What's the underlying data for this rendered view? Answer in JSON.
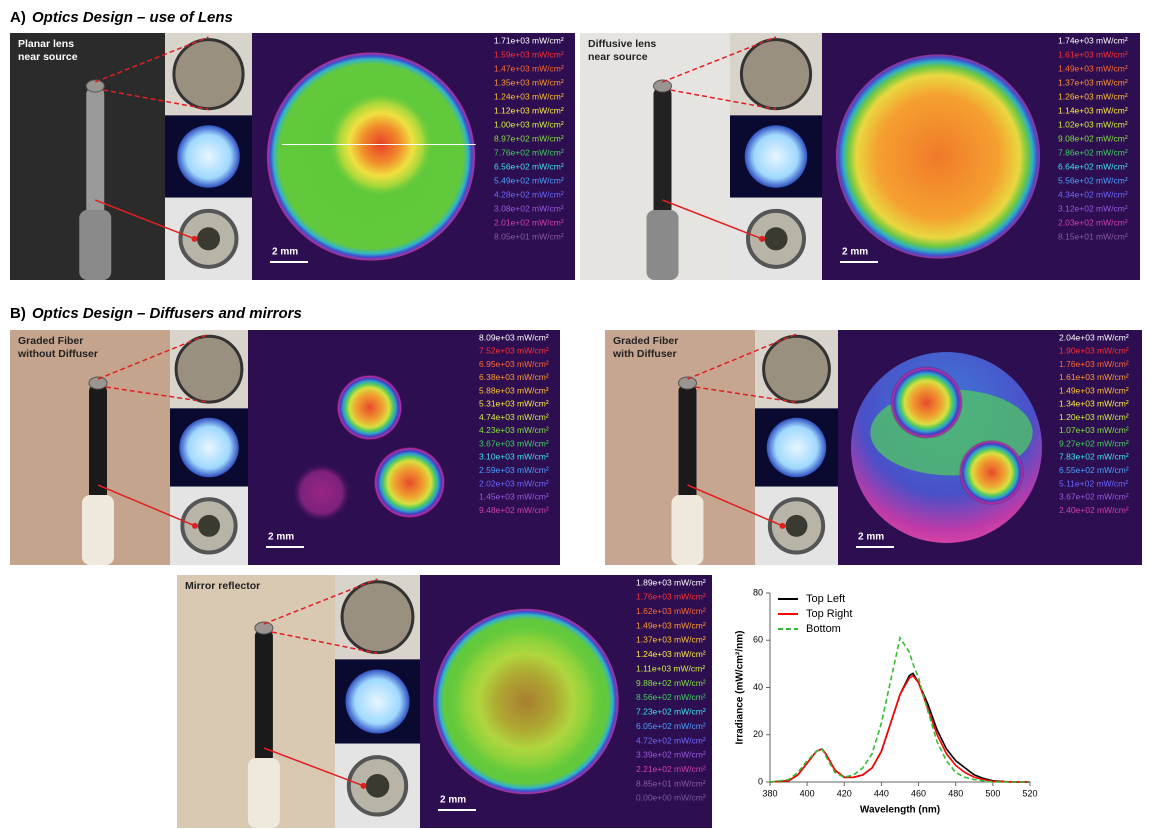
{
  "panel_a": {
    "label": "A)",
    "title": "Optics Design – use of Lens",
    "panels": [
      {
        "caption": [
          "Planar lens",
          "near source"
        ],
        "scale_bar": "2 mm",
        "legend": [
          "1.71e+03 mW/cm²",
          "1.59e+03 mW/cm²",
          "1.47e+03 mW/cm²",
          "1.35e+03 mW/cm²",
          "1.24e+03 mW/cm²",
          "1.12e+03 mW/cm²",
          "1.00e+03 mW/cm²",
          "8.97e+02 mW/cm²",
          "7.76e+02 mW/cm²",
          "6.56e+02 mW/cm²",
          "5.49e+02 mW/cm²",
          "4.28e+02 mW/cm²",
          "3.08e+02 mW/cm²",
          "2.01e+02 mW/cm²",
          "8.05e+01 mW/cm²"
        ]
      },
      {
        "caption": [
          "Diffusive lens",
          "near source"
        ],
        "scale_bar": "2 mm",
        "legend": [
          "1.74e+03 mW/cm²",
          "1.61e+03 mW/cm²",
          "1.49e+03 mW/cm²",
          "1.37e+03 mW/cm²",
          "1.26e+03 mW/cm²",
          "1.14e+03 mW/cm²",
          "1.02e+03 mW/cm²",
          "9.08e+02 mW/cm²",
          "7.86e+02 mW/cm²",
          "6.64e+02 mW/cm²",
          "5.56e+02 mW/cm²",
          "4.34e+02 mW/cm²",
          "3.12e+02 mW/cm²",
          "2.03e+02 mW/cm²",
          "8.15e+01 mW/cm²"
        ]
      }
    ]
  },
  "panel_b": {
    "label": "B)",
    "title": "Optics Design – Diffusers and mirrors",
    "panels": [
      {
        "caption": [
          "Graded Fiber",
          "without Diffuser"
        ],
        "scale_bar": "2 mm",
        "legend": [
          "8.09e+03 mW/cm²",
          "7.52e+03 mW/cm²",
          "6.95e+03 mW/cm²",
          "6.38e+03 mW/cm²",
          "5.88e+03 mW/cm²",
          "5.31e+03 mW/cm²",
          "4.74e+03 mW/cm²",
          "4.23e+03 mW/cm²",
          "3.67e+03 mW/cm²",
          "3.10e+03 mW/cm²",
          "2.59e+03 mW/cm²",
          "2.02e+03 mW/cm²",
          "1.45e+03 mW/cm²",
          "9.48e+02 mW/cm²"
        ]
      },
      {
        "caption": [
          "Graded Fiber",
          "with Diffuser"
        ],
        "scale_bar": "2 mm",
        "legend": [
          "2.04e+03 mW/cm²",
          "1.90e+03 mW/cm²",
          "1.76e+03 mW/cm²",
          "1.61e+03 mW/cm²",
          "1.49e+03 mW/cm²",
          "1.34e+03 mW/cm²",
          "1.20e+03 mW/cm²",
          "1.07e+03 mW/cm²",
          "9.27e+02 mW/cm²",
          "7.83e+02 mW/cm²",
          "6.55e+02 mW/cm²",
          "5.11e+02 mW/cm²",
          "3.67e+02 mW/cm²",
          "2.40e+02 mW/cm²"
        ]
      },
      {
        "caption": [
          "Mirror reflector"
        ],
        "scale_bar": "2 mm",
        "legend": [
          "1.89e+03 mW/cm²",
          "1.76e+03 mW/cm²",
          "1.62e+03 mW/cm²",
          "1.49e+03 mW/cm²",
          "1.37e+03 mW/cm²",
          "1.24e+03 mW/cm²",
          "1.11e+03 mW/cm²",
          "9.88e+02 mW/cm²",
          "8.56e+02 mW/cm²",
          "7.23e+02 mW/cm²",
          "6.05e+02 mW/cm²",
          "4.72e+02 mW/cm²",
          "3.39e+02 mW/cm²",
          "2.21e+02 mW/cm²",
          "8.85e+01 mW/cm²",
          "0.00e+00 mW/cm²"
        ]
      }
    ]
  },
  "chart_data": {
    "type": "line",
    "x_label": "Wavelength (nm)",
    "y_label": "Irradiance (mW/cm²/nm)",
    "x": [
      380,
      390,
      395,
      400,
      405,
      408,
      410,
      415,
      420,
      425,
      430,
      435,
      440,
      445,
      450,
      455,
      457,
      460,
      465,
      470,
      475,
      480,
      485,
      490,
      495,
      500,
      510,
      520
    ],
    "series": [
      {
        "name": "Top Left",
        "color": "#000000",
        "values": [
          0,
          0.5,
          3,
          8,
          13,
          14,
          12,
          5,
          2,
          2,
          3,
          6,
          13,
          25,
          37,
          45,
          46,
          42,
          33,
          22,
          14,
          9,
          6,
          3,
          1.5,
          0.5,
          0,
          0
        ]
      },
      {
        "name": "Top Right",
        "color": "#ff0000",
        "values": [
          0,
          0.5,
          3,
          8,
          13,
          14,
          12,
          5,
          2,
          2,
          3,
          6,
          13,
          25,
          37,
          44,
          45,
          42,
          31,
          20,
          12,
          7,
          4,
          2,
          1,
          0.3,
          0,
          0
        ]
      },
      {
        "name": "Bottom",
        "color": "#33bb33",
        "linestyle": "dashed",
        "values": [
          0,
          1,
          4,
          9,
          13,
          14,
          11,
          4,
          2,
          3,
          6,
          12,
          25,
          43,
          61,
          55,
          50,
          44,
          30,
          17,
          9,
          4,
          2,
          1,
          0.5,
          0,
          0,
          0
        ]
      }
    ],
    "xlim": [
      380,
      520
    ],
    "xticks": [
      380,
      400,
      420,
      440,
      460,
      480,
      500,
      520
    ],
    "ylim": [
      0,
      80
    ],
    "yticks": [
      0,
      20,
      40,
      60,
      80
    ],
    "legend": "upper left"
  }
}
